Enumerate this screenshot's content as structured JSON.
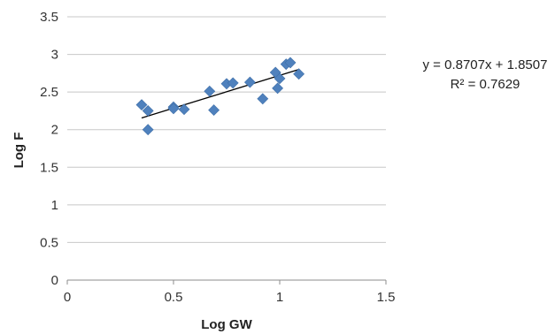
{
  "chart_data": {
    "type": "scatter",
    "title": "",
    "xlabel": "Log GW",
    "ylabel": "Log F",
    "xlim": [
      0,
      1.5
    ],
    "ylim": [
      0,
      3.5
    ],
    "x_ticks": [
      "0",
      "0.5",
      "1",
      "1.5"
    ],
    "y_ticks": [
      "0",
      "0.5",
      "1",
      "1.5",
      "2",
      "2.5",
      "3",
      "3.5"
    ],
    "x_tick_values": [
      0,
      0.5,
      1,
      1.5
    ],
    "y_tick_values": [
      0,
      0.5,
      1,
      1.5,
      2,
      2.5,
      3,
      3.5
    ],
    "grid": "horizontal",
    "marker_color": "#4f81bd",
    "trendline_color": "#000000",
    "points": [
      {
        "x": 0.35,
        "y": 2.33
      },
      {
        "x": 0.38,
        "y": 2.25
      },
      {
        "x": 0.38,
        "y": 2.0
      },
      {
        "x": 0.5,
        "y": 2.3
      },
      {
        "x": 0.5,
        "y": 2.28
      },
      {
        "x": 0.55,
        "y": 2.27
      },
      {
        "x": 0.67,
        "y": 2.51
      },
      {
        "x": 0.69,
        "y": 2.26
      },
      {
        "x": 0.75,
        "y": 2.61
      },
      {
        "x": 0.78,
        "y": 2.62
      },
      {
        "x": 0.86,
        "y": 2.63
      },
      {
        "x": 0.92,
        "y": 2.41
      },
      {
        "x": 0.98,
        "y": 2.76
      },
      {
        "x": 0.99,
        "y": 2.55
      },
      {
        "x": 1.0,
        "y": 2.68
      },
      {
        "x": 1.03,
        "y": 2.87
      },
      {
        "x": 1.05,
        "y": 2.89
      },
      {
        "x": 1.09,
        "y": 2.74
      }
    ],
    "trendline": {
      "slope": 0.8707,
      "intercept": 1.8507,
      "x_range": [
        0.35,
        1.09
      ]
    },
    "annotations": {
      "equation": "y = 0.8707x + 1.8507",
      "r_squared": "R² = 0.7629"
    }
  }
}
